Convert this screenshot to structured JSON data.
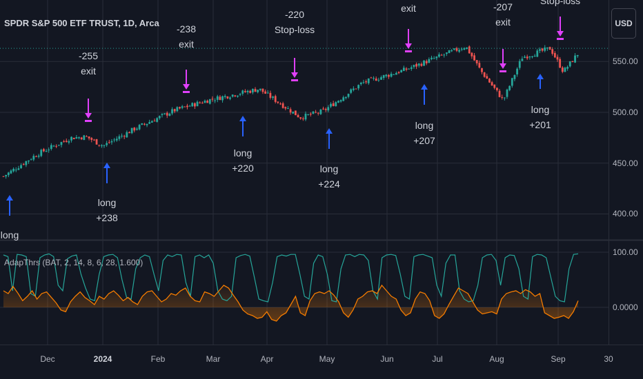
{
  "symbol": {
    "title": "SPDR S&P 500 ETF TRUST, 1D, Arca"
  },
  "currency_button": "USD",
  "indicator": {
    "title": "AdapThrs (BAT, 2, 14, 8, 6, 28, 1.600)"
  },
  "price_axis": {
    "labels": [
      {
        "id": "p400",
        "value": 400,
        "text": "400.00"
      },
      {
        "id": "p450",
        "value": 450,
        "text": "450.00"
      },
      {
        "id": "p500",
        "value": 500,
        "text": "500.00"
      },
      {
        "id": "p550",
        "value": 550,
        "text": "550.00"
      }
    ]
  },
  "osc_axis": {
    "labels": [
      {
        "id": "o100",
        "value": 100,
        "text": "100.00"
      },
      {
        "id": "o0",
        "value": 0,
        "text": "0.0000"
      }
    ]
  },
  "time_axis": {
    "labels": [
      {
        "id": "dec",
        "text": "Dec",
        "bold": false
      },
      {
        "id": "y2024",
        "text": "2024",
        "bold": true
      },
      {
        "id": "feb",
        "text": "Feb",
        "bold": false
      },
      {
        "id": "mar",
        "text": "Mar",
        "bold": false
      },
      {
        "id": "apr",
        "text": "Apr",
        "bold": false
      },
      {
        "id": "may",
        "text": "May",
        "bold": false
      },
      {
        "id": "jun",
        "text": "Jun",
        "bold": false
      },
      {
        "id": "jul",
        "text": "Jul",
        "bold": false
      },
      {
        "id": "aug",
        "text": "Aug",
        "bold": false
      },
      {
        "id": "sep",
        "text": "Sep",
        "bold": false
      },
      {
        "id": "t30",
        "text": "30",
        "bold": false
      }
    ]
  },
  "signals": {
    "entries": [
      {
        "id": "long-1",
        "type": "long",
        "lines": [
          "long"
        ]
      },
      {
        "id": "long-2",
        "type": "long",
        "lines": [
          "long",
          "+238"
        ]
      },
      {
        "id": "long-3",
        "type": "long",
        "lines": [
          "long",
          "+220"
        ]
      },
      {
        "id": "long-4",
        "type": "long",
        "lines": [
          "long",
          "+224"
        ]
      },
      {
        "id": "long-5",
        "type": "long",
        "lines": [
          "long",
          "+207"
        ]
      },
      {
        "id": "long-6",
        "type": "long",
        "lines": [
          "long",
          "+201"
        ]
      }
    ],
    "exits": [
      {
        "id": "exit-1",
        "type": "exit",
        "lines": [
          "-255",
          "exit"
        ]
      },
      {
        "id": "exit-2",
        "type": "exit",
        "lines": [
          "-238",
          "exit"
        ]
      },
      {
        "id": "exit-3",
        "type": "exit",
        "lines": [
          "-220",
          "Stop-loss"
        ]
      },
      {
        "id": "exit-4",
        "type": "exit",
        "lines": [
          "exit"
        ]
      },
      {
        "id": "exit-5",
        "type": "exit",
        "lines": [
          "-207",
          "exit"
        ]
      },
      {
        "id": "exit-6",
        "type": "exit",
        "lines": [
          "Stop-loss"
        ]
      }
    ]
  },
  "colors": {
    "background": "#131722",
    "up_candle": "#26a69a",
    "down_candle": "#ef5350",
    "long_arrow": "#2962ff",
    "exit_arrow": "#e040fb",
    "teal_line": "#26a69a",
    "orange_line": "#f57c00",
    "grid": "#2a2e39",
    "last_price_line": "#26a69a"
  },
  "chart_data": [
    {
      "type": "candlestick",
      "title": "SPDR S&P 500 ETF TRUST, 1D, Arca",
      "ylim": [
        395,
        575
      ],
      "x_range": [
        "2023-11-13",
        "2024-09-30"
      ],
      "ohlc_anchors": [
        {
          "date": "2023-11-13",
          "close": 437
        },
        {
          "date": "2023-12-01",
          "close": 459
        },
        {
          "date": "2023-12-19",
          "close": 475
        },
        {
          "date": "2023-12-27",
          "close": 476
        },
        {
          "date": "2024-01-05",
          "close": 467
        },
        {
          "date": "2024-01-22",
          "close": 484
        },
        {
          "date": "2024-02-12",
          "close": 502
        },
        {
          "date": "2024-03-01",
          "close": 512
        },
        {
          "date": "2024-03-28",
          "close": 523
        },
        {
          "date": "2024-04-19",
          "close": 495
        },
        {
          "date": "2024-05-01",
          "close": 501
        },
        {
          "date": "2024-05-22",
          "close": 529
        },
        {
          "date": "2024-06-14",
          "close": 542
        },
        {
          "date": "2024-07-16",
          "close": 565
        },
        {
          "date": "2024-07-24",
          "close": 541
        },
        {
          "date": "2024-08-05",
          "close": 512
        },
        {
          "date": "2024-08-15",
          "close": 554
        },
        {
          "date": "2024-08-30",
          "close": 563
        },
        {
          "date": "2024-09-06",
          "close": 540
        },
        {
          "date": "2024-09-16",
          "close": 563
        }
      ]
    },
    {
      "type": "line",
      "title": "AdapThrs (BAT, 2, 14, 8, 6, 28, 1.600)",
      "ylim": [
        -35,
        110
      ],
      "series": [
        {
          "color": "#26a69a",
          "description": "upper band oscillating between about 10 and 100"
        },
        {
          "color": "#f57c00",
          "description": "lower line oscillating between about -30 and 45"
        }
      ]
    }
  ]
}
